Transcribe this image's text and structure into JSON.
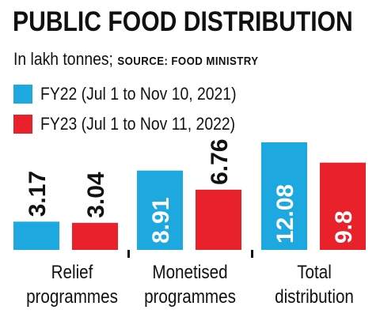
{
  "title": "PUBLIC FOOD DISTRIBUTION",
  "subtitle": "In lakh tonnes;",
  "source": "SOURCE: FOOD MINISTRY",
  "colors": {
    "fy22": "#1ea8e0",
    "fy23": "#e8212b"
  },
  "chart_data": {
    "type": "bar",
    "categories": [
      "Relief programmes",
      "Monetised programmes",
      "Total distribution"
    ],
    "category_lines": [
      [
        "Relief",
        "programmes"
      ],
      [
        "Monetised",
        "programmes"
      ],
      [
        "Total",
        "distribution"
      ]
    ],
    "series": [
      {
        "name": "FY22 (Jul 1 to Nov 10, 2021)",
        "values": [
          3.17,
          8.91,
          12.08
        ],
        "labels": [
          "3.17",
          "8.91",
          "12.08"
        ],
        "color": "#1ea8e0"
      },
      {
        "name": "FY23 (Jul 1 to Nov 11, 2022)",
        "values": [
          3.04,
          6.76,
          9.8
        ],
        "labels": [
          "3.04",
          "6.76",
          "9.8"
        ],
        "color": "#e8212b"
      }
    ],
    "ylim": [
      0,
      12.08
    ],
    "legend": "top-left",
    "grid": false
  }
}
